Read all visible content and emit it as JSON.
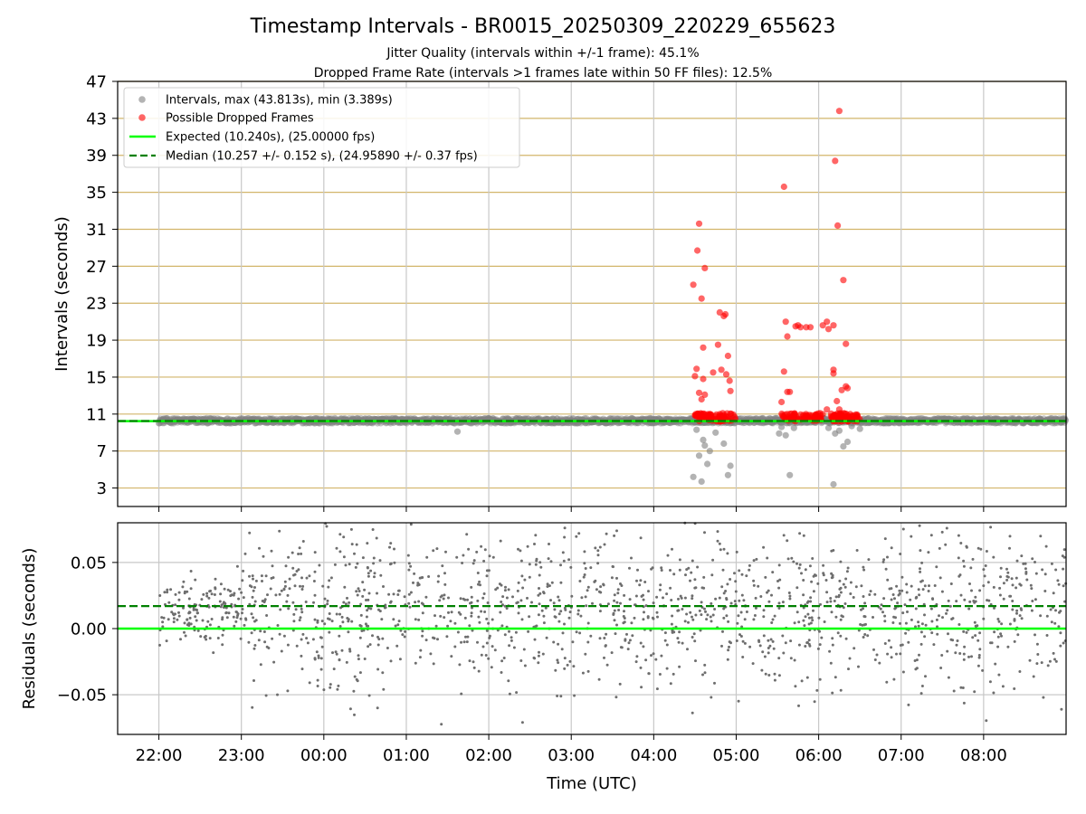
{
  "figure": {
    "title": "Timestamp Intervals - BR0015_20250309_220229_655623",
    "subtitle_1": "Jitter Quality (intervals within +/-1 frame): 45.1%",
    "subtitle_2": "Dropped Frame Rate (intervals >1 frames late within 50 FF files): 12.5%",
    "xlabel": "Time (UTC)"
  },
  "colors": {
    "interval_points": "#808080",
    "dropped_points": "#ff0000",
    "expected_line": "#00ff00",
    "median_line": "#008000",
    "hgrid": "#d2b56a",
    "vgrid": "#c8c8c8",
    "residual_points": "#6e6e6e"
  },
  "chart_data": [
    {
      "type": "scatter",
      "title": "Timestamp Intervals - BR0015_20250309_220229_655623",
      "ylabel": "Intervals (seconds)",
      "xlabel": "",
      "x_unit": "hours since 22:00 UTC",
      "xlim": [
        -0.5,
        11.0
      ],
      "ylim": [
        1.0,
        47.0
      ],
      "yticks": [
        3,
        7,
        11,
        15,
        19,
        23,
        27,
        31,
        35,
        39,
        43,
        47
      ],
      "xticks": [
        "22:00",
        "23:00",
        "00:00",
        "01:00",
        "02:00",
        "03:00",
        "04:00",
        "05:00",
        "06:00",
        "07:00",
        "08:00"
      ],
      "grid": true,
      "legend_position": "upper-left",
      "legend": [
        "Intervals, max (43.813s), min (3.389s)",
        "Possible Dropped Frames",
        "Expected (10.240s), (25.00000 fps)",
        "Median (10.257 +/- 0.152 s), (24.95890 +/- 0.37 fps)"
      ],
      "expected": 10.24,
      "median": 10.257,
      "baseline_band": [
        10.0,
        10.55
      ],
      "baseline_x_range": [
        0.0,
        11.0
      ],
      "outlier_points": [
        [
          3.62,
          9.1
        ],
        [
          6.48,
          4.2
        ],
        [
          6.52,
          9.3
        ],
        [
          6.55,
          6.5
        ],
        [
          6.58,
          3.7
        ],
        [
          6.6,
          8.2
        ],
        [
          6.62,
          7.6
        ],
        [
          6.65,
          5.6
        ],
        [
          6.68,
          7.0
        ],
        [
          6.75,
          9.0
        ],
        [
          6.85,
          7.8
        ],
        [
          6.9,
          4.4
        ],
        [
          6.93,
          5.4
        ],
        [
          7.52,
          8.9
        ],
        [
          7.55,
          9.6
        ],
        [
          7.6,
          8.7
        ],
        [
          7.65,
          4.4
        ],
        [
          7.7,
          9.5
        ],
        [
          8.12,
          9.5
        ],
        [
          8.18,
          3.4
        ],
        [
          8.2,
          8.9
        ],
        [
          8.25,
          9.2
        ],
        [
          8.3,
          7.5
        ],
        [
          8.35,
          8.0
        ],
        [
          8.4,
          9.7
        ],
        [
          8.5,
          9.4
        ]
      ],
      "dropped_clusters": [
        [
          6.5,
          7.0
        ],
        [
          7.55,
          8.05
        ],
        [
          8.15,
          8.5
        ]
      ],
      "dropped_points": [
        [
          6.48,
          25.0
        ],
        [
          6.53,
          28.7
        ],
        [
          6.55,
          31.6
        ],
        [
          6.58,
          23.5
        ],
        [
          6.6,
          18.2
        ],
        [
          6.62,
          26.8
        ],
        [
          6.5,
          15.1
        ],
        [
          6.52,
          15.9
        ],
        [
          6.55,
          13.3
        ],
        [
          6.58,
          12.6
        ],
        [
          6.6,
          14.8
        ],
        [
          6.62,
          13.1
        ],
        [
          6.72,
          15.5
        ],
        [
          6.78,
          18.5
        ],
        [
          6.8,
          22.0
        ],
        [
          6.82,
          15.8
        ],
        [
          6.85,
          21.6
        ],
        [
          6.87,
          21.8
        ],
        [
          6.88,
          15.3
        ],
        [
          6.9,
          17.3
        ],
        [
          6.92,
          14.6
        ],
        [
          6.93,
          13.5
        ],
        [
          7.58,
          35.6
        ],
        [
          7.6,
          21.0
        ],
        [
          7.62,
          19.4
        ],
        [
          7.58,
          15.6
        ],
        [
          7.62,
          13.4
        ],
        [
          7.55,
          12.3
        ],
        [
          7.65,
          13.4
        ],
        [
          7.72,
          20.5
        ],
        [
          7.75,
          20.6
        ],
        [
          7.78,
          20.4
        ],
        [
          7.85,
          20.4
        ],
        [
          7.9,
          20.4
        ],
        [
          8.05,
          20.6
        ],
        [
          8.1,
          21.0
        ],
        [
          8.12,
          20.2
        ],
        [
          8.18,
          20.6
        ],
        [
          8.18,
          15.4
        ],
        [
          8.18,
          15.8
        ],
        [
          8.2,
          38.4
        ],
        [
          8.25,
          43.8
        ],
        [
          8.23,
          31.4
        ],
        [
          8.3,
          25.5
        ],
        [
          8.33,
          18.6
        ],
        [
          8.33,
          14.0
        ],
        [
          8.28,
          13.6
        ],
        [
          8.22,
          12.4
        ],
        [
          8.25,
          11.5
        ],
        [
          8.1,
          11.5
        ],
        [
          8.35,
          13.8
        ]
      ]
    },
    {
      "type": "scatter",
      "title": "",
      "xlabel": "Time (UTC)",
      "ylabel": "Residuals (seconds)",
      "x_unit": "hours since 22:00 UTC",
      "xlim": [
        -0.5,
        11.0
      ],
      "ylim": [
        -0.08,
        0.08
      ],
      "yticks": [
        -0.05,
        0.0,
        0.05
      ],
      "ytick_labels": [
        "−0.05",
        "0.00",
        "0.05"
      ],
      "xticks": [
        "22:00",
        "23:00",
        "00:00",
        "01:00",
        "02:00",
        "03:00",
        "04:00",
        "05:00",
        "06:00",
        "07:00",
        "08:00"
      ],
      "grid": true,
      "expected_residual": 0.0,
      "median_residual": 0.017,
      "point_count": 1600,
      "x_range": [
        0.0,
        11.0
      ],
      "y_range": [
        -0.08,
        0.08
      ]
    }
  ]
}
